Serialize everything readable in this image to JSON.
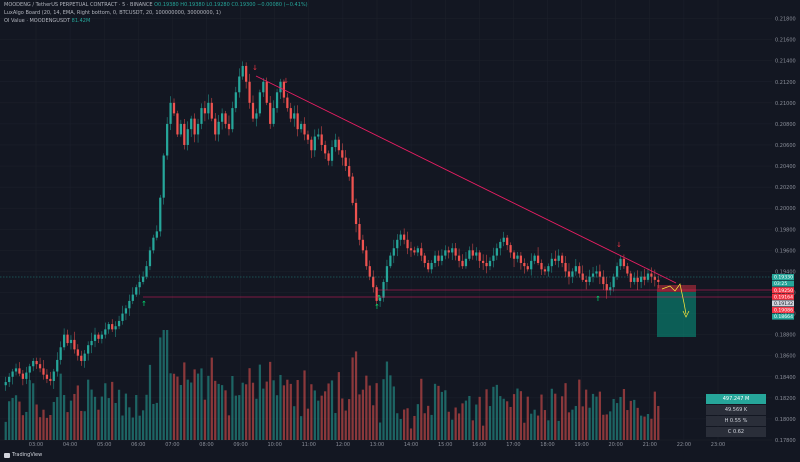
{
  "legend": {
    "symbol_line": "MOODENG / TetherUS PERPETUAL CONTRACT · 5 · BINANCE",
    "ohlc_line": "O0.19380 H0.19380 L0.19280 C0.19300 −0.00080 (−0.41%)",
    "indicator_line": "LuxAlgo Board (20, 14, EMA, Right bottom, 0, BTCUSDT, 20, 100000000, 30000000, 1)",
    "oi_label": "OI Value · MOODENGUSDT",
    "oi_value": "81.42M"
  },
  "price_axis": [
    "0.21800",
    "0.21600",
    "0.21400",
    "0.21200",
    "0.21000",
    "0.20800",
    "0.20600",
    "0.20400",
    "0.20200",
    "0.20000",
    "0.19800",
    "0.19600",
    "0.19400",
    "0.19200",
    "0.19000",
    "0.18800",
    "0.18600",
    "0.18400",
    "0.18200",
    "0.18000",
    "0.17800"
  ],
  "price_tags": [
    {
      "text": "0.19330",
      "color": "#26a69a",
      "value": 0.1933
    },
    {
      "text": "03:25",
      "color": "#26a69a",
      "value": 0.19295
    },
    {
      "text": "0.19250",
      "color": "#f23645",
      "value": 0.1925
    },
    {
      "text": "0.19164",
      "color": "#f23645",
      "value": 0.19164
    },
    {
      "text": "0.19132",
      "color": "#131722",
      "value": 0.19132
    },
    {
      "text": "0.19086",
      "color": "#f23645",
      "value": 0.19086
    },
    {
      "text": "0.18664",
      "color": "#26a69a",
      "value": 0.18664
    }
  ],
  "time_axis": [
    "03:00",
    "04:00",
    "05:00",
    "06:00",
    "07:00",
    "08:00",
    "09:00",
    "10:00",
    "11:00",
    "12:00",
    "13:00",
    "14:00",
    "15:00",
    "16:00",
    "17:00",
    "18:00",
    "19:00",
    "20:00",
    "21:00",
    "22:00",
    "23:00"
  ],
  "stats": {
    "row1": "497.247 M",
    "row2": "49.569 K",
    "row3": "H 0.55 %",
    "row4": "C  0.62"
  },
  "brand": "TradingView",
  "colors": {
    "up": "#26a69a",
    "down": "#ef5350",
    "trend": "#e91e63",
    "bg": "#131722"
  },
  "chart_data": {
    "type": "candlestick",
    "y_range": [
      0.178,
      0.219
    ],
    "closes": [
      0.1835,
      0.184,
      0.1845,
      0.1848,
      0.1843,
      0.1838,
      0.1844,
      0.185,
      0.1855,
      0.1852,
      0.1848,
      0.1842,
      0.1838,
      0.1836,
      0.1845,
      0.1856,
      0.1868,
      0.188,
      0.1872,
      0.1875,
      0.1866,
      0.186,
      0.1855,
      0.1862,
      0.187,
      0.1874,
      0.188,
      0.1876,
      0.188,
      0.1885,
      0.189,
      0.1885,
      0.1888,
      0.1893,
      0.19,
      0.1905,
      0.1912,
      0.1918,
      0.1925,
      0.193,
      0.1935,
      0.1945,
      0.196,
      0.1972,
      0.1978,
      0.201,
      0.205,
      0.208,
      0.21,
      0.209,
      0.207,
      0.208,
      0.206,
      0.2075,
      0.2085,
      0.207,
      0.208,
      0.2095,
      0.209,
      0.21,
      0.2085,
      0.207,
      0.2082,
      0.209,
      0.208,
      0.2075,
      0.2095,
      0.211,
      0.2125,
      0.2135,
      0.212,
      0.21,
      0.2085,
      0.209,
      0.211,
      0.212,
      0.21,
      0.208,
      0.2095,
      0.211,
      0.212,
      0.2105,
      0.2095,
      0.2085,
      0.209,
      0.2075,
      0.208,
      0.207,
      0.2065,
      0.2055,
      0.2068,
      0.207,
      0.206,
      0.2052,
      0.2045,
      0.2058,
      0.2065,
      0.2055,
      0.2048,
      0.204,
      0.203,
      0.2005,
      0.1985,
      0.197,
      0.196,
      0.1945,
      0.1935,
      0.1925,
      0.1912,
      0.1915,
      0.193,
      0.1945,
      0.1955,
      0.1962,
      0.197,
      0.1975,
      0.197,
      0.1962,
      0.196,
      0.1958,
      0.1962,
      0.1955,
      0.1948,
      0.1942,
      0.1948,
      0.1955,
      0.195,
      0.1955,
      0.196,
      0.1958,
      0.1962,
      0.1955,
      0.195,
      0.1945,
      0.1952,
      0.196,
      0.1955,
      0.1958,
      0.195,
      0.1948,
      0.1945,
      0.195,
      0.1955,
      0.1962,
      0.1968,
      0.1972,
      0.1965,
      0.1958,
      0.1952,
      0.1955,
      0.1948,
      0.1945,
      0.1942,
      0.195,
      0.1955,
      0.1948,
      0.1942,
      0.194,
      0.1945,
      0.1952,
      0.195,
      0.1955,
      0.1948,
      0.194,
      0.1935,
      0.194,
      0.1945,
      0.1938,
      0.1932,
      0.193,
      0.1935,
      0.1938,
      0.194,
      0.1935,
      0.1928,
      0.1922,
      0.1925,
      0.1935,
      0.1945,
      0.1952,
      0.1945,
      0.1938,
      0.193,
      0.1934,
      0.193,
      0.1935,
      0.1932,
      0.1938,
      0.1935,
      0.1932,
      0.193
    ]
  }
}
